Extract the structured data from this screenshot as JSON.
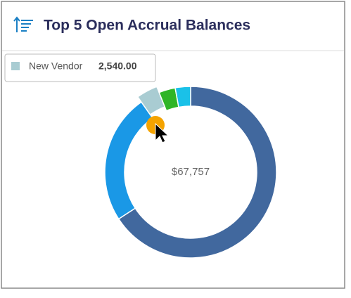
{
  "chart_data": {
    "type": "donut",
    "title": "Top 5 Open Accrual Balances",
    "center_label": "$67,757",
    "categories": [
      null,
      null,
      "New Vendor",
      null,
      null
    ],
    "values": [
      44600,
      16560,
      2540,
      2100,
      1957
    ],
    "value_labels": [
      null,
      null,
      "2,540.00",
      null,
      null
    ],
    "colors": [
      "#41689e",
      "#1a98e6",
      "#a9ccd2",
      "#2fb526",
      "#1ac1e8"
    ],
    "highlighted": 2
  }
}
